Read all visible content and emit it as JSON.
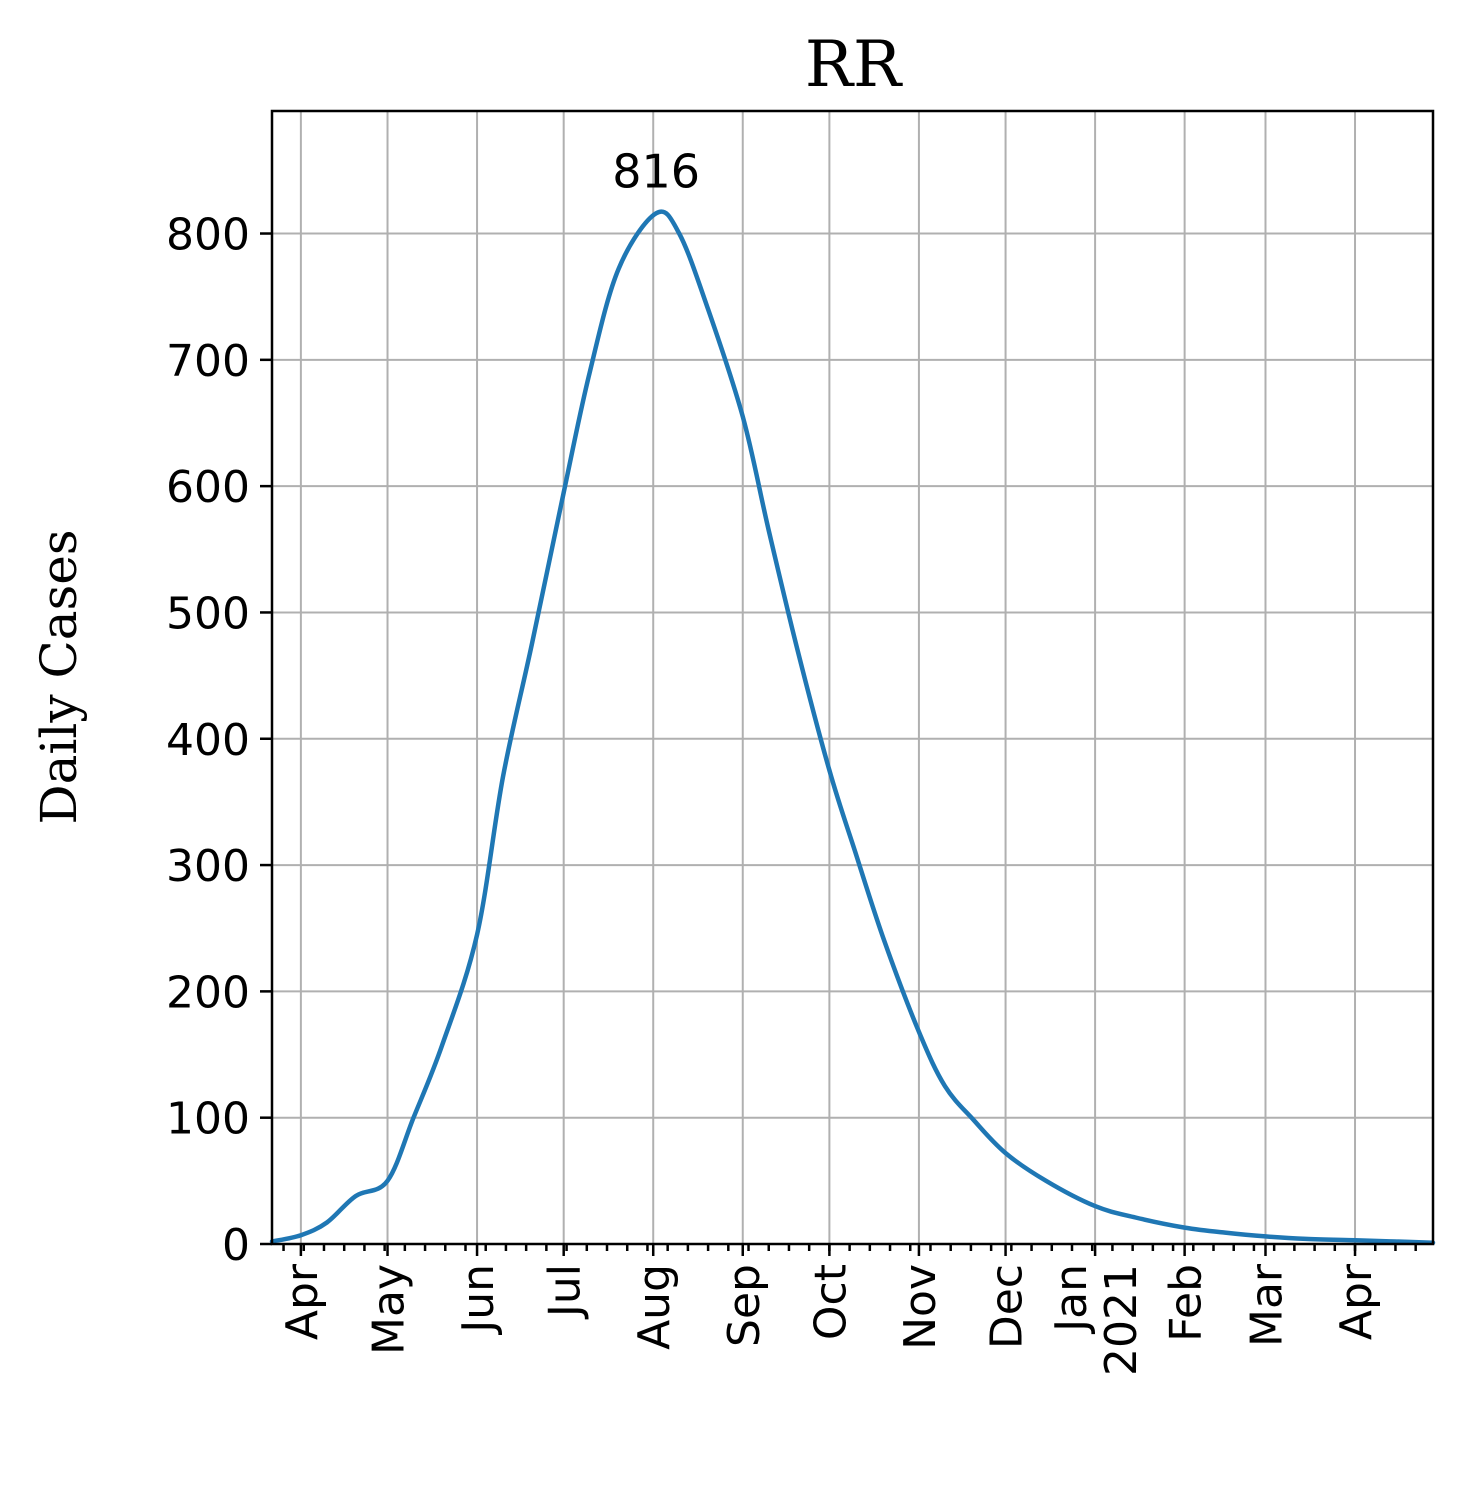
{
  "chart_data": {
    "type": "line",
    "title": "RR",
    "xlabel": "",
    "ylabel": "Daily Cases",
    "grid": true,
    "x_range": [
      "2020-03-22",
      "2021-04-28"
    ],
    "ylim": [
      0,
      897
    ],
    "y_ticks": [
      0,
      100,
      200,
      300,
      400,
      500,
      600,
      700,
      800
    ],
    "x_ticks": [
      {
        "date": "2020-04-01",
        "label": "Apr"
      },
      {
        "date": "2020-05-01",
        "label": "May"
      },
      {
        "date": "2020-06-01",
        "label": "Jun"
      },
      {
        "date": "2020-07-01",
        "label": "Jul"
      },
      {
        "date": "2020-08-01",
        "label": "Aug"
      },
      {
        "date": "2020-09-01",
        "label": "Sep"
      },
      {
        "date": "2020-10-01",
        "label": "Oct"
      },
      {
        "date": "2020-11-01",
        "label": "Nov"
      },
      {
        "date": "2020-12-01",
        "label": "Dec"
      },
      {
        "date": "2021-01-01",
        "label": "Jan\n2021"
      },
      {
        "date": "2021-02-01",
        "label": "Feb"
      },
      {
        "date": "2021-03-01",
        "label": "Mar"
      },
      {
        "date": "2021-04-01",
        "label": "Apr"
      }
    ],
    "annotations": [
      {
        "text": "816",
        "x": "2020-08-02",
        "y": 816
      }
    ],
    "series": [
      {
        "color": "#1f77b4",
        "x": [
          "2020-03-22",
          "2020-04-01",
          "2020-04-10",
          "2020-04-20",
          "2020-05-01",
          "2020-05-10",
          "2020-05-20",
          "2020-06-01",
          "2020-06-10",
          "2020-06-20",
          "2020-07-01",
          "2020-07-10",
          "2020-07-20",
          "2020-08-02",
          "2020-08-10",
          "2020-08-20",
          "2020-09-01",
          "2020-09-10",
          "2020-09-20",
          "2020-10-01",
          "2020-10-10",
          "2020-10-20",
          "2020-11-01",
          "2020-11-10",
          "2020-11-20",
          "2020-12-01",
          "2020-12-15",
          "2021-01-01",
          "2021-01-15",
          "2021-02-01",
          "2021-02-15",
          "2021-03-01",
          "2021-03-15",
          "2021-04-01",
          "2021-04-15",
          "2021-04-28"
        ],
        "y": [
          2,
          7,
          17,
          38,
          50,
          100,
          158,
          245,
          370,
          475,
          595,
          690,
          772,
          816,
          800,
          740,
          655,
          565,
          470,
          375,
          310,
          240,
          168,
          125,
          98,
          72,
          50,
          30,
          21,
          13,
          9,
          6,
          4,
          3,
          2,
          1
        ]
      }
    ]
  }
}
